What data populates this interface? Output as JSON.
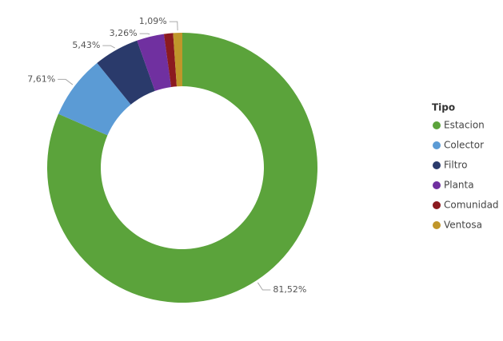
{
  "chart_data": {
    "type": "donut",
    "legend_title": "Tipo",
    "legend_position": "right",
    "categories": [
      "Estacion",
      "Colector",
      "Filtro",
      "Planta",
      "Comunidad",
      "Ventosa"
    ],
    "values": [
      81.52,
      7.61,
      5.43,
      3.26,
      1.09,
      1.09
    ],
    "value_labels": [
      "81,52%",
      "7,61%",
      "5,43%",
      "3,26%",
      null,
      "1,09%"
    ],
    "colors": [
      "#5ba33b",
      "#5b9bd5",
      "#2a3a6b",
      "#7030a0",
      "#8b1a1f",
      "#c0962a"
    ]
  }
}
